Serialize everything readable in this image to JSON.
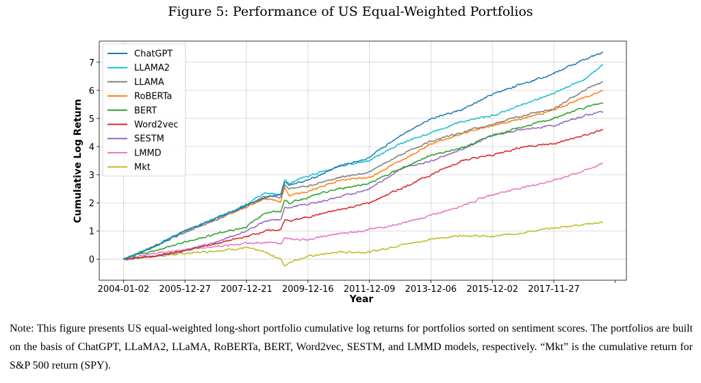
{
  "figure_title": "Figure 5: Performance of US Equal-Weighted Portfolios",
  "note": "Note:  This figure presents US equal-weighted long-short portfolio cumulative log returns for portfolios sorted on sentiment scores. The portfolios are built on the basis of ChatGPT, LLaMA2, LLaMA, RoBERTa, BERT, Word2vec, SESTM, and LMMD models, respectively. “Mkt” is the cumulative return for S&P 500 return (SPY).",
  "chart_data": {
    "type": "line",
    "title": "",
    "xlabel": "Year",
    "ylabel": "Cumulative Log Return",
    "x_unit": "trading-day index",
    "xlim": [
      -197,
      4090
    ],
    "ylim": [
      -0.75,
      7.75
    ],
    "grid": true,
    "legend_position": "top-left",
    "x_ticks": [
      0,
      500,
      1000,
      1500,
      2000,
      2500,
      3000,
      3500,
      4000
    ],
    "x_tick_labels": [
      "2004-01-02",
      "2005-12-27",
      "2007-12-21",
      "2009-12-16",
      "2011-12-09",
      "2013-12-06",
      "2015-12-02",
      "2017-11-27",
      ""
    ],
    "y_ticks": [
      0,
      1,
      2,
      3,
      4,
      5,
      6,
      7
    ],
    "y_tick_labels": [
      "0",
      "1",
      "2",
      "3",
      "4",
      "5",
      "6",
      "7"
    ],
    "x": [
      0,
      250,
      500,
      750,
      1000,
      1150,
      1280,
      1310,
      1350,
      1500,
      1750,
      2000,
      2250,
      2500,
      2750,
      3000,
      3250,
      3500,
      3750,
      3900
    ],
    "series": [
      {
        "name": "ChatGPT",
        "color": "#1f77b4",
        "values": [
          0,
          0.45,
          1.0,
          1.45,
          1.9,
          2.2,
          2.3,
          2.75,
          2.65,
          2.8,
          3.3,
          3.6,
          4.4,
          5.0,
          5.3,
          5.85,
          6.25,
          6.6,
          7.1,
          7.35
        ]
      },
      {
        "name": "LLAMA2",
        "color": "#17becf",
        "values": [
          0,
          0.45,
          1.0,
          1.45,
          1.95,
          2.35,
          2.3,
          2.8,
          2.7,
          2.95,
          3.3,
          3.5,
          4.1,
          4.5,
          4.9,
          5.1,
          5.5,
          5.9,
          6.4,
          6.9
        ]
      },
      {
        "name": "LLAMA",
        "color": "#7f7f7f",
        "values": [
          0,
          0.45,
          0.95,
          1.4,
          1.9,
          2.25,
          2.2,
          2.65,
          2.5,
          2.6,
          2.9,
          3.1,
          3.7,
          4.2,
          4.5,
          4.8,
          5.1,
          5.35,
          6.0,
          6.3
        ]
      },
      {
        "name": "RoBERTa",
        "color": "#ff7f0e",
        "values": [
          0,
          0.45,
          1.0,
          1.4,
          1.85,
          2.15,
          2.05,
          2.55,
          2.25,
          2.4,
          2.8,
          2.9,
          3.5,
          4.1,
          4.45,
          4.75,
          5.0,
          5.3,
          5.75,
          6.0
        ]
      },
      {
        "name": "BERT",
        "color": "#2ca02c",
        "values": [
          0,
          0.3,
          0.6,
          0.9,
          1.15,
          1.65,
          1.7,
          2.1,
          2.0,
          2.2,
          2.5,
          2.7,
          3.2,
          3.7,
          3.95,
          4.4,
          4.7,
          5.0,
          5.4,
          5.55
        ]
      },
      {
        "name": "Word2vec",
        "color": "#d62728",
        "values": [
          0,
          0.1,
          0.3,
          0.55,
          0.8,
          1.0,
          1.05,
          1.4,
          1.35,
          1.5,
          1.75,
          2.0,
          2.5,
          3.0,
          3.5,
          3.7,
          4.0,
          4.1,
          4.4,
          4.6
        ]
      },
      {
        "name": "SESTM",
        "color": "#9467bd",
        "values": [
          0,
          0.1,
          0.3,
          0.6,
          1.0,
          1.35,
          1.4,
          1.8,
          1.85,
          1.95,
          2.2,
          2.5,
          3.2,
          3.5,
          3.9,
          4.4,
          4.6,
          4.75,
          5.1,
          5.25
        ]
      },
      {
        "name": "LMMD",
        "color": "#e377c2",
        "values": [
          0,
          0.2,
          0.35,
          0.45,
          0.55,
          0.6,
          0.55,
          0.75,
          0.7,
          0.7,
          0.9,
          1.05,
          1.25,
          1.55,
          1.9,
          2.3,
          2.55,
          2.8,
          3.15,
          3.4
        ]
      },
      {
        "name": "Mkt",
        "color": "#bcbd22",
        "values": [
          0,
          0.1,
          0.2,
          0.3,
          0.4,
          0.25,
          0.0,
          -0.25,
          -0.1,
          0.1,
          0.25,
          0.25,
          0.5,
          0.7,
          0.85,
          0.8,
          0.95,
          1.1,
          1.25,
          1.3
        ]
      }
    ]
  }
}
